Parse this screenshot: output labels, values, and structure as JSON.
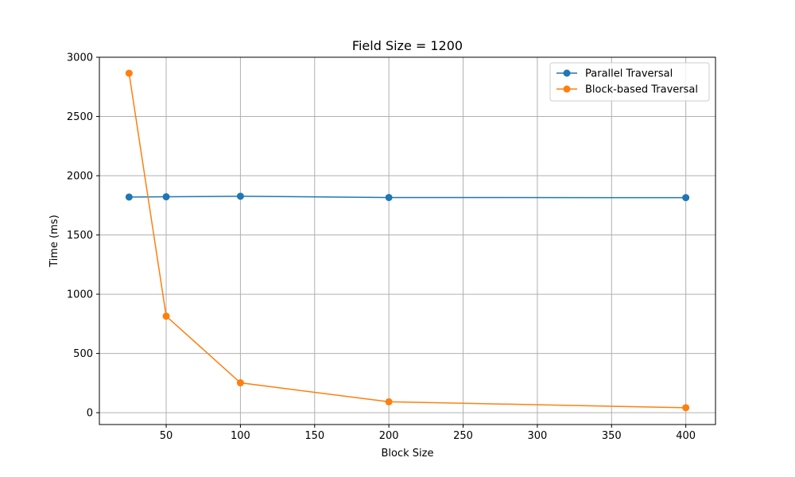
{
  "chart_data": {
    "type": "line",
    "title": "Field Size = 1200",
    "xlabel": "Block Size",
    "ylabel": "Time (ms)",
    "xlim": [
      5,
      420
    ],
    "ylim": [
      -100,
      3000
    ],
    "xticks": [
      50,
      100,
      150,
      200,
      250,
      300,
      350,
      400
    ],
    "yticks": [
      0,
      500,
      1000,
      1500,
      2000,
      2500,
      3000
    ],
    "grid": true,
    "legend_position": "top-right",
    "x": [
      25,
      50,
      100,
      200,
      400
    ],
    "series": [
      {
        "name": "Parallel Traversal",
        "color": "#1f77b4",
        "values": [
          1820,
          1822,
          1827,
          1816,
          1815
        ]
      },
      {
        "name": "Block-based Traversal",
        "color": "#ff7f0e",
        "values": [
          2865,
          815,
          252,
          92,
          42
        ]
      }
    ]
  }
}
